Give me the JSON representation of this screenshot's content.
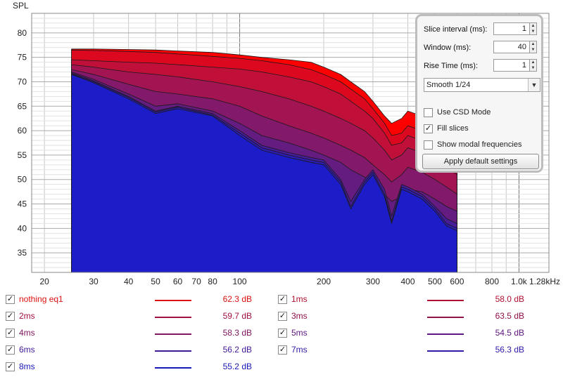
{
  "chart_data": {
    "type": "area",
    "ylabel": "SPL",
    "xlabel": "",
    "x_scale": "log",
    "xlim": [
      18,
      1280
    ],
    "ylim": [
      31,
      84
    ],
    "x_ticks": [
      {
        "value": 20,
        "label": "20"
      },
      {
        "value": 30,
        "label": "30"
      },
      {
        "value": 40,
        "label": "40"
      },
      {
        "value": 50,
        "label": "50"
      },
      {
        "value": 60,
        "label": "60"
      },
      {
        "value": 70,
        "label": "70"
      },
      {
        "value": 80,
        "label": "80"
      },
      {
        "value": 100,
        "label": "100"
      },
      {
        "value": 200,
        "label": "200"
      },
      {
        "value": 300,
        "label": "300"
      },
      {
        "value": 400,
        "label": "400"
      },
      {
        "value": 500,
        "label": "500"
      },
      {
        "value": 600,
        "label": "600"
      },
      {
        "value": 800,
        "label": "800"
      },
      {
        "value": 1000,
        "label": "1.0k"
      },
      {
        "value": 1280,
        "label": "1.28kHz"
      }
    ],
    "y_ticks": [
      35,
      40,
      45,
      50,
      55,
      60,
      65,
      70,
      75,
      80
    ],
    "grid": true,
    "fill_slices": true,
    "x": [
      25,
      30,
      40,
      50,
      60,
      80,
      100,
      120,
      150,
      180,
      200,
      230,
      250,
      280,
      300,
      330,
      350,
      380,
      400,
      450,
      500,
      550,
      600
    ],
    "series": [
      {
        "name": "nothing eq1",
        "color": "#ff0000",
        "values": [
          76.7,
          76.7,
          76.6,
          76.5,
          76.3,
          76.0,
          75.5,
          75.0,
          74.5,
          74.0,
          73.0,
          71.5,
          70.0,
          68.0,
          66.0,
          63.0,
          61.5,
          62.5,
          64.0,
          63.0,
          61.5,
          60.0,
          58.0
        ]
      },
      {
        "name": "1ms",
        "color": "#dc0820",
        "values": [
          76.5,
          76.4,
          76.2,
          76.0,
          75.7,
          75.2,
          74.8,
          74.3,
          73.5,
          72.5,
          71.5,
          70.0,
          68.5,
          66.5,
          64.5,
          61.5,
          59.0,
          59.5,
          61.0,
          60.0,
          58.5,
          57.0,
          55.0
        ]
      },
      {
        "name": "2ms",
        "color": "#c0103a",
        "values": [
          74.5,
          74.3,
          74.0,
          73.8,
          73.5,
          73.0,
          72.6,
          72.0,
          71.0,
          70.0,
          69.0,
          67.5,
          66.0,
          64.0,
          62.5,
          59.5,
          57.0,
          57.5,
          59.0,
          58.0,
          56.5,
          55.0,
          53.0
        ]
      },
      {
        "name": "3ms",
        "color": "#a21552",
        "values": [
          73.5,
          73.0,
          72.0,
          71.5,
          71.0,
          70.0,
          69.0,
          68.0,
          66.5,
          65.0,
          64.0,
          62.5,
          61.5,
          60.0,
          58.5,
          56.0,
          54.0,
          55.0,
          56.5,
          55.5,
          54.0,
          52.5,
          51.0
        ]
      },
      {
        "name": "4ms",
        "color": "#82196a",
        "values": [
          72.5,
          71.5,
          69.5,
          68.0,
          67.5,
          66.5,
          65.0,
          63.0,
          61.0,
          59.5,
          58.5,
          57.0,
          56.0,
          54.5,
          53.0,
          51.0,
          49.5,
          51.0,
          52.5,
          51.5,
          50.0,
          48.5,
          47.0
        ]
      },
      {
        "name": "5ms",
        "color": "#641c80",
        "values": [
          72.0,
          70.5,
          67.5,
          65.0,
          65.5,
          64.0,
          61.5,
          59.0,
          57.5,
          56.0,
          55.0,
          53.5,
          52.0,
          50.5,
          49.5,
          47.0,
          45.5,
          46.5,
          48.0,
          47.5,
          46.0,
          44.5,
          43.5
        ]
      },
      {
        "name": "6ms",
        "color": "#461c98",
        "values": [
          71.8,
          70.2,
          67.0,
          64.0,
          65.0,
          63.5,
          60.0,
          57.0,
          55.5,
          54.5,
          54.0,
          50.0,
          45.5,
          50.0,
          52.0,
          48.0,
          42.5,
          49.0,
          48.5,
          47.0,
          44.5,
          42.0,
          41.0
        ]
      },
      {
        "name": "7ms",
        "color": "#2c1cb0",
        "values": [
          71.6,
          70.0,
          66.8,
          63.8,
          64.8,
          63.2,
          59.5,
          56.5,
          55.0,
          54.0,
          53.5,
          49.5,
          44.5,
          49.5,
          51.5,
          47.0,
          41.5,
          48.5,
          48.0,
          46.5,
          44.0,
          41.0,
          40.0
        ]
      },
      {
        "name": "8ms",
        "color": "#1c1cc8",
        "values": [
          71.5,
          69.8,
          66.5,
          63.5,
          64.5,
          63.0,
          59.0,
          56.0,
          54.5,
          53.5,
          53.0,
          49.0,
          44.0,
          49.0,
          51.0,
          46.5,
          41.0,
          48.0,
          47.5,
          46.0,
          43.5,
          40.5,
          39.5
        ]
      }
    ]
  },
  "settings": {
    "slice_interval_label": "Slice interval (ms):",
    "slice_interval_value": "1",
    "window_label": "Window (ms):",
    "window_value": "40",
    "rise_time_label": "Rise Time (ms):",
    "rise_time_value": "1",
    "smoothing": "Smooth 1/24",
    "use_csd_mode_label": "Use CSD Mode",
    "use_csd_mode": false,
    "fill_slices_label": "Fill slices",
    "fill_slices": true,
    "show_modal_label": "Show modal frequencies",
    "show_modal": false,
    "apply_default_label": "Apply default settings"
  },
  "legend": [
    {
      "name": "nothing eq1",
      "value": "62.3 dB",
      "color": "#dd1111",
      "checked": true
    },
    {
      "name": "1ms",
      "value": "58.0 dB",
      "color": "#b01030",
      "checked": true
    },
    {
      "name": "2ms",
      "value": "59.7 dB",
      "color": "#a01040",
      "checked": true
    },
    {
      "name": "3ms",
      "value": "63.5 dB",
      "color": "#901048",
      "checked": true
    },
    {
      "name": "4ms",
      "value": "58.3 dB",
      "color": "#801860",
      "checked": true
    },
    {
      "name": "5ms",
      "value": "54.5 dB",
      "color": "#601880",
      "checked": true
    },
    {
      "name": "6ms",
      "value": "56.2 dB",
      "color": "#401898",
      "checked": true
    },
    {
      "name": "7ms",
      "value": "56.3 dB",
      "color": "#3018a8",
      "checked": true
    },
    {
      "name": "8ms",
      "value": "55.2 dB",
      "color": "#1818b8",
      "checked": true
    }
  ],
  "icons": {
    "check": "✓",
    "spin_up": "▲",
    "spin_down": "▼",
    "dropdown": "▼"
  }
}
